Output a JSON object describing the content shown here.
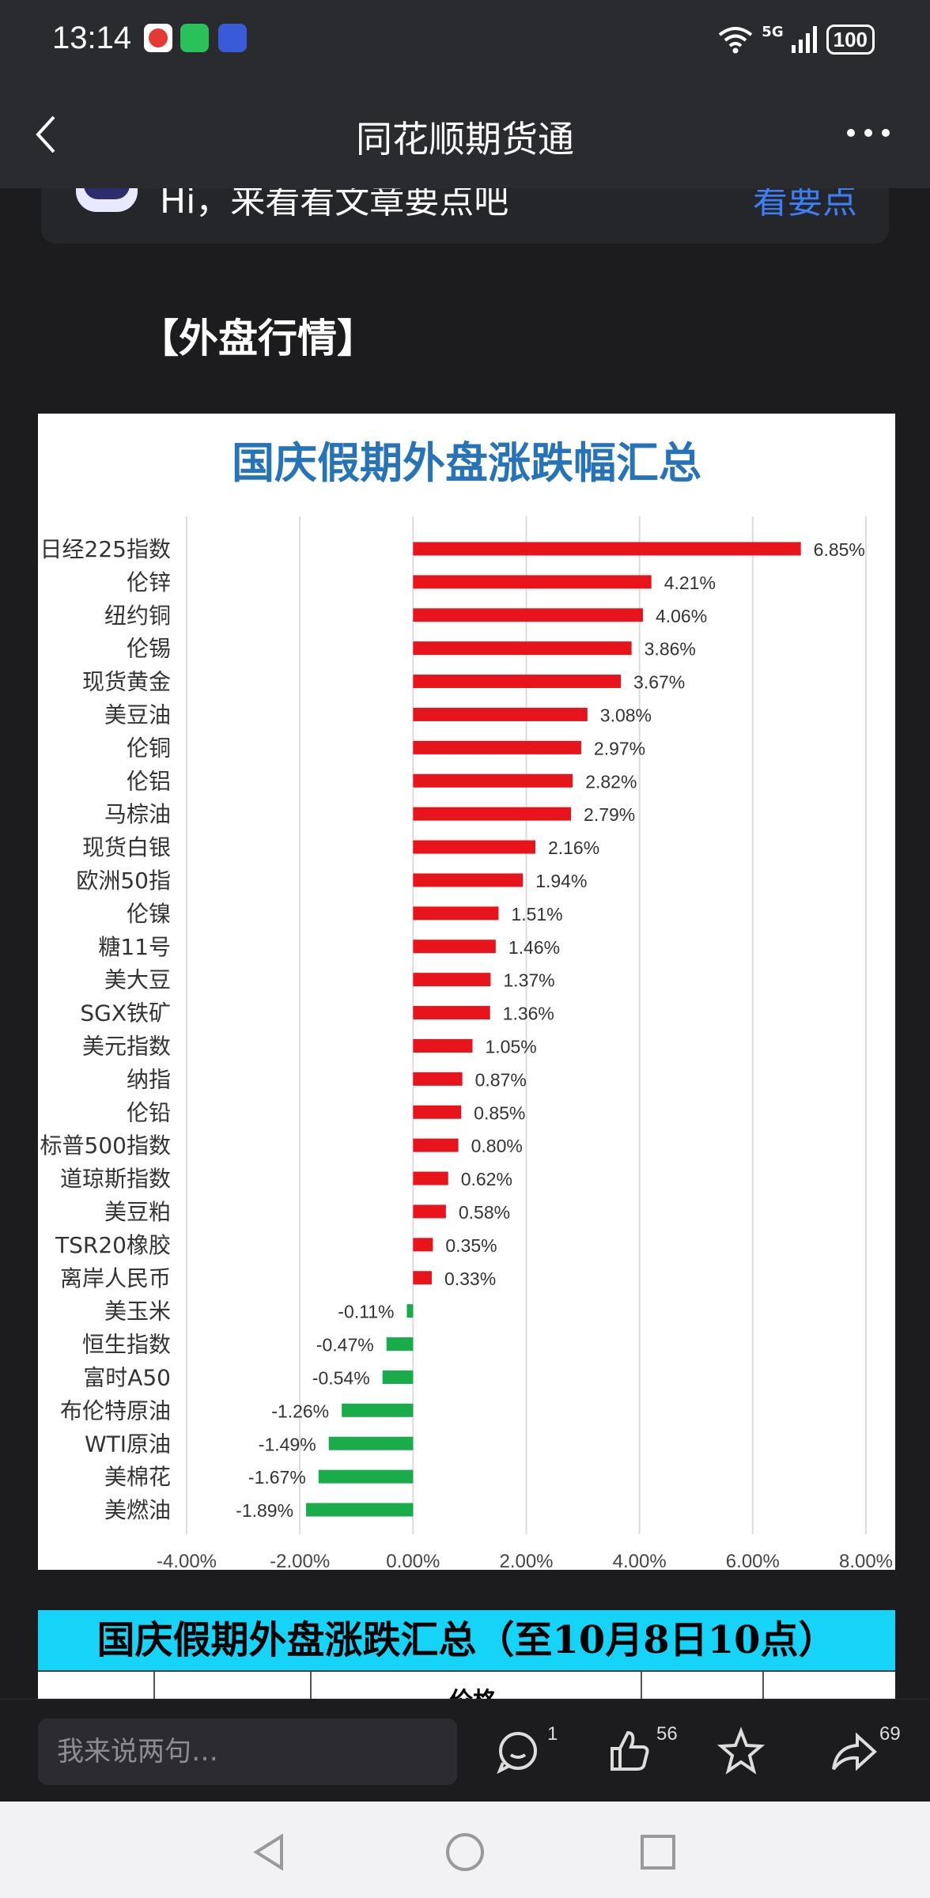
{
  "status_bar": {
    "time": "13:14",
    "network": "5G",
    "battery": "100"
  },
  "nav": {
    "title": "同花顺期货通"
  },
  "ai_banner": {
    "text": "Hi，来看看文章要点吧",
    "link": "看要点"
  },
  "section": {
    "heading": "【外盘行情】"
  },
  "chart_data": {
    "type": "bar",
    "orientation": "horizontal",
    "title": "国庆假期外盘涨跌幅汇总",
    "categories": [
      "日经225指数",
      "伦锌",
      "纽约铜",
      "伦锡",
      "现货黄金",
      "美豆油",
      "伦铜",
      "伦铝",
      "马棕油",
      "现货白银",
      "欧洲50指",
      "伦镍",
      "糖11号",
      "美大豆",
      "SGX铁矿",
      "美元指数",
      "纳指",
      "伦铅",
      "标普500指数",
      "道琼斯指数",
      "美豆粕",
      "TSR20橡胶",
      "离岸人民币",
      "美玉米",
      "恒生指数",
      "富时A50",
      "布伦特原油",
      "WTI原油",
      "美棉花",
      "美燃油"
    ],
    "values": [
      6.85,
      4.21,
      4.06,
      3.86,
      3.67,
      3.08,
      2.97,
      2.82,
      2.79,
      2.16,
      1.94,
      1.51,
      1.46,
      1.37,
      1.36,
      1.05,
      0.87,
      0.85,
      0.8,
      0.62,
      0.58,
      0.35,
      0.33,
      -0.11,
      -0.47,
      -0.54,
      -1.26,
      -1.49,
      -1.67,
      -1.89
    ],
    "data_labels": [
      "6.85%",
      "4.21%",
      "4.06%",
      "3.86%",
      "3.67%",
      "3.08%",
      "2.97%",
      "2.82%",
      "2.79%",
      "2.16%",
      "1.94%",
      "1.51%",
      "1.46%",
      "1.37%",
      "1.36%",
      "1.05%",
      "0.87%",
      "0.85%",
      "0.80%",
      "0.62%",
      "0.58%",
      "0.35%",
      "0.33%",
      "-0.11%",
      "-0.47%",
      "-0.54%",
      "-1.26%",
      "-1.49%",
      "-1.67%",
      "-1.89%"
    ],
    "xticks": [
      "-4.00%",
      "-2.00%",
      "0.00%",
      "2.00%",
      "4.00%",
      "6.00%",
      "8.00%"
    ],
    "xlim": [
      -4,
      8
    ],
    "colors": {
      "positive": "#e8141c",
      "negative": "#1aab4b"
    },
    "grid": "vertical"
  },
  "table": {
    "title": "国庆假期外盘涨跌汇总（至10月8日10点）",
    "price_header": "价格"
  },
  "bottom_bar": {
    "placeholder": "我来说两句…",
    "comments": "1",
    "likes": "56",
    "shares": "69"
  }
}
